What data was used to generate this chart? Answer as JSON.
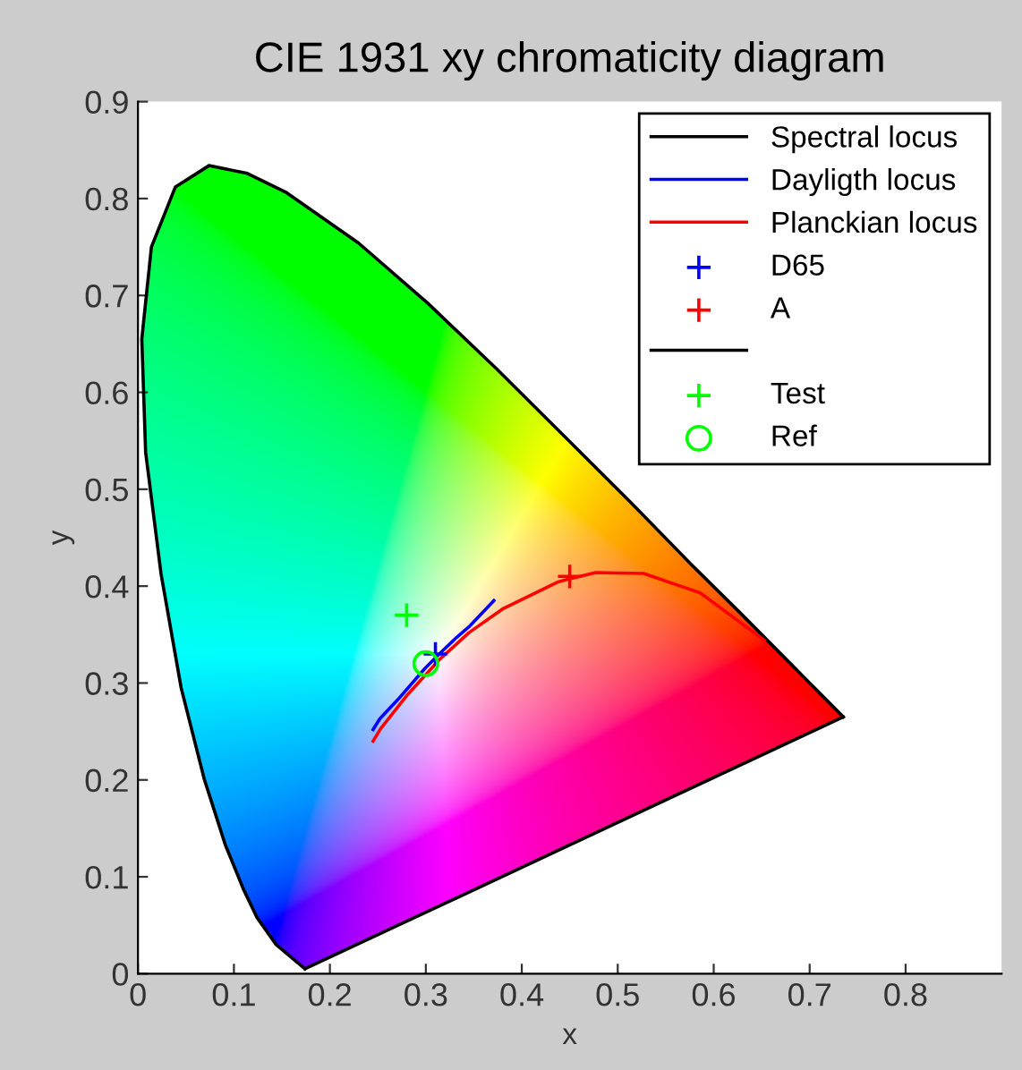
{
  "chart_data": {
    "type": "line",
    "title": "CIE 1931 xy chromaticity diagram",
    "xlabel": "x",
    "ylabel": "y",
    "xlim": [
      0,
      0.9
    ],
    "ylim": [
      0,
      0.9
    ],
    "xticks": [
      0,
      0.1,
      0.2,
      0.3,
      0.4,
      0.5,
      0.6,
      0.7,
      0.8
    ],
    "yticks": [
      0,
      0.1,
      0.2,
      0.3,
      0.4,
      0.5,
      0.6,
      0.7,
      0.8,
      0.9
    ],
    "grid": false,
    "legend": "top right",
    "series": [
      {
        "name": "Spectral locus",
        "color": "#000000",
        "x": [
          0.174,
          0.144,
          0.124,
          0.11,
          0.091,
          0.069,
          0.045,
          0.024,
          0.008,
          0.004,
          0.014,
          0.039,
          0.074,
          0.114,
          0.155,
          0.23,
          0.302,
          0.373,
          0.444,
          0.513,
          0.575,
          0.627,
          0.666,
          0.692,
          0.708,
          0.726,
          0.735
        ],
        "values": [
          0.005,
          0.03,
          0.058,
          0.087,
          0.133,
          0.201,
          0.295,
          0.413,
          0.538,
          0.655,
          0.75,
          0.812,
          0.834,
          0.826,
          0.806,
          0.754,
          0.692,
          0.625,
          0.555,
          0.487,
          0.424,
          0.373,
          0.334,
          0.308,
          0.292,
          0.274,
          0.265
        ]
      },
      {
        "name": "Dayligth locus",
        "color": "#0000ff",
        "x": [
          0.245,
          0.252,
          0.271,
          0.299,
          0.313,
          0.332,
          0.346,
          0.371
        ],
        "values": [
          0.252,
          0.263,
          0.283,
          0.315,
          0.329,
          0.347,
          0.359,
          0.385
        ]
      },
      {
        "name": "Planckian locus",
        "color": "#ff0000",
        "x": [
          0.245,
          0.253,
          0.281,
          0.314,
          0.345,
          0.381,
          0.437,
          0.448,
          0.477,
          0.527,
          0.586,
          0.653
        ],
        "values": [
          0.24,
          0.253,
          0.288,
          0.324,
          0.352,
          0.377,
          0.404,
          0.407,
          0.414,
          0.413,
          0.393,
          0.344
        ]
      },
      {
        "name": "D65",
        "type": "scatter",
        "marker": "cross",
        "color": "#0000ff",
        "x": [
          0.31
        ],
        "values": [
          0.33
        ]
      },
      {
        "name": "A",
        "type": "scatter",
        "marker": "cross",
        "color": "#ff0000",
        "x": [
          0.45
        ],
        "values": [
          0.41
        ]
      },
      {
        "color": "#000000",
        "x": [
          0.735,
          0.174
        ],
        "values": [
          0.265,
          0.005
        ]
      },
      {
        "name": "Test",
        "type": "scatter",
        "marker": "cross",
        "color": "#00ff00",
        "x": [
          0.28
        ],
        "values": [
          0.37
        ]
      },
      {
        "name": "Ref",
        "type": "scatter",
        "marker": "circle",
        "color": "#00ff00",
        "x": [
          0.3
        ],
        "values": [
          0.32
        ]
      }
    ]
  }
}
